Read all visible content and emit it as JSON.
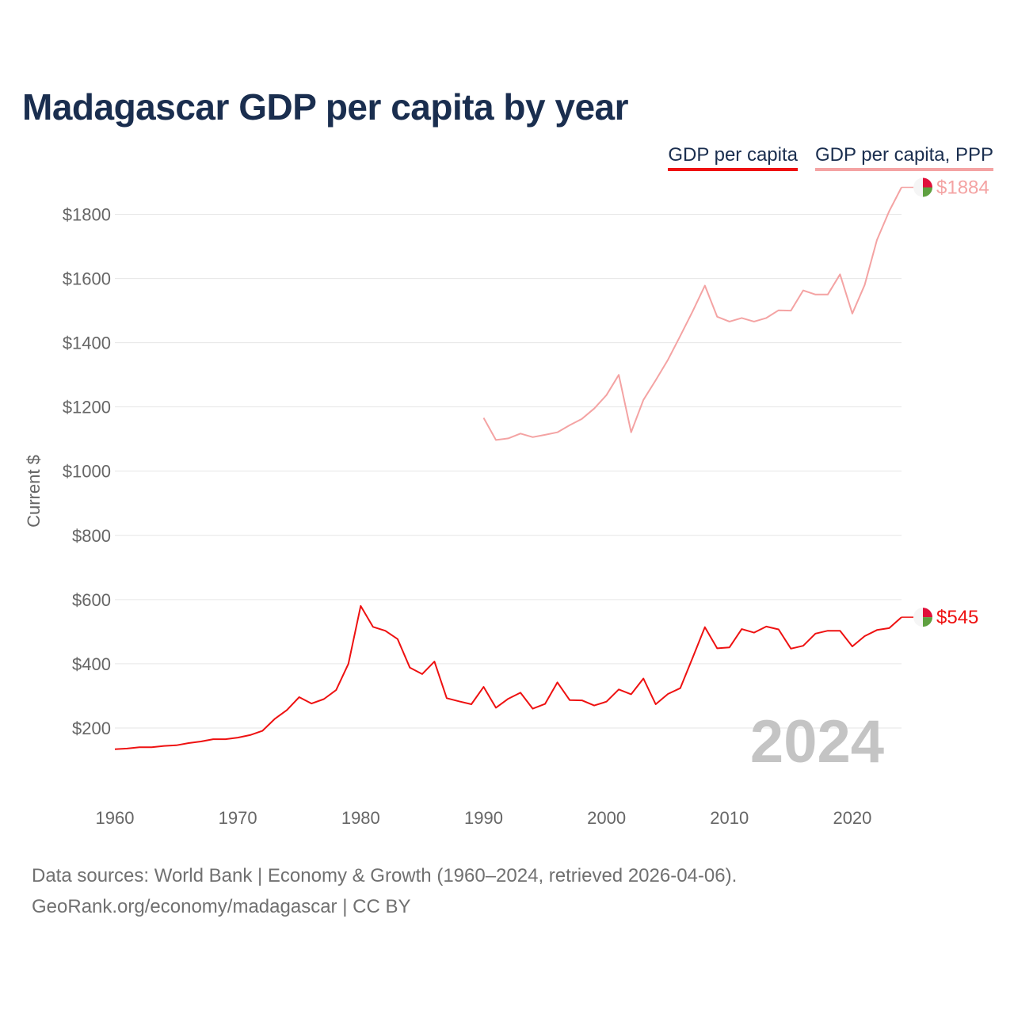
{
  "title": "Madagascar GDP per capita by year",
  "legend": [
    {
      "label": "GDP per capita",
      "color": "#ee1111"
    },
    {
      "label": "GDP per capita, PPP",
      "color": "#f4a3a3"
    }
  ],
  "footer": {
    "line1": "Data sources: World Bank | Economy & Growth (1960–2024, retrieved 2026-04-06).",
    "line2": "GeoRank.org/economy/madagascar | CC BY"
  },
  "flag_colors": {
    "red": "#e0103a",
    "green": "#5ea040",
    "white": "#f5f5f5"
  },
  "chart_data": {
    "type": "line",
    "title": "Madagascar GDP per capita by year",
    "xlabel": "",
    "ylabel": "Current $",
    "xlim": [
      1960,
      2024
    ],
    "ylim": [
      0,
      1900
    ],
    "x_ticks": [
      1960,
      1970,
      1980,
      1990,
      2000,
      2010,
      2020
    ],
    "y_ticks": [
      200,
      400,
      600,
      800,
      1000,
      1200,
      1400,
      1600,
      1800
    ],
    "y_tick_labels": [
      "$200",
      "$400",
      "$600",
      "$800",
      "$1000",
      "$1200",
      "$1400",
      "$1600",
      "$1800"
    ],
    "current_year": "2024",
    "grid": true,
    "series": [
      {
        "name": "GDP per capita",
        "color": "#ee1111",
        "end_label": "$545",
        "x": [
          1960,
          1961,
          1962,
          1963,
          1964,
          1965,
          1966,
          1967,
          1968,
          1969,
          1970,
          1971,
          1972,
          1973,
          1974,
          1975,
          1976,
          1977,
          1978,
          1979,
          1980,
          1981,
          1982,
          1983,
          1984,
          1985,
          1986,
          1987,
          1988,
          1989,
          1990,
          1991,
          1992,
          1993,
          1994,
          1995,
          1996,
          1997,
          1998,
          1999,
          2000,
          2001,
          2002,
          2003,
          2004,
          2005,
          2006,
          2007,
          2008,
          2009,
          2010,
          2011,
          2012,
          2013,
          2014,
          2015,
          2016,
          2017,
          2018,
          2019,
          2020,
          2021,
          2022,
          2023,
          2024
        ],
        "values": [
          134,
          136,
          140,
          140,
          144,
          146,
          153,
          158,
          165,
          165,
          170,
          178,
          191,
          228,
          256,
          296,
          276,
          290,
          318,
          400,
          580,
          515,
          503,
          477,
          388,
          368,
          407,
          293,
          283,
          274,
          328,
          263,
          291,
          310,
          260,
          275,
          342,
          287,
          286,
          270,
          282,
          320,
          305,
          354,
          274,
          306,
          324,
          418,
          514,
          448,
          451,
          508,
          497,
          516,
          507,
          447,
          456,
          494,
          503,
          503,
          454,
          486,
          505,
          511,
          545
        ]
      },
      {
        "name": "GDP per capita, PPP",
        "color": "#f4a3a3",
        "end_label": "$1884",
        "x": [
          1990,
          1991,
          1992,
          1993,
          1994,
          1995,
          1996,
          1997,
          1998,
          1999,
          2000,
          2001,
          2002,
          2003,
          2004,
          2005,
          2006,
          2007,
          2008,
          2009,
          2010,
          2011,
          2012,
          2013,
          2014,
          2015,
          2016,
          2017,
          2018,
          2019,
          2020,
          2021,
          2022,
          2023,
          2024
        ],
        "values": [
          1166,
          1097,
          1102,
          1117,
          1106,
          1113,
          1121,
          1143,
          1163,
          1195,
          1237,
          1300,
          1121,
          1222,
          1283,
          1347,
          1421,
          1497,
          1578,
          1481,
          1466,
          1477,
          1466,
          1477,
          1501,
          1500,
          1563,
          1550,
          1550,
          1613,
          1491,
          1580,
          1720,
          1810,
          1884
        ]
      }
    ]
  }
}
